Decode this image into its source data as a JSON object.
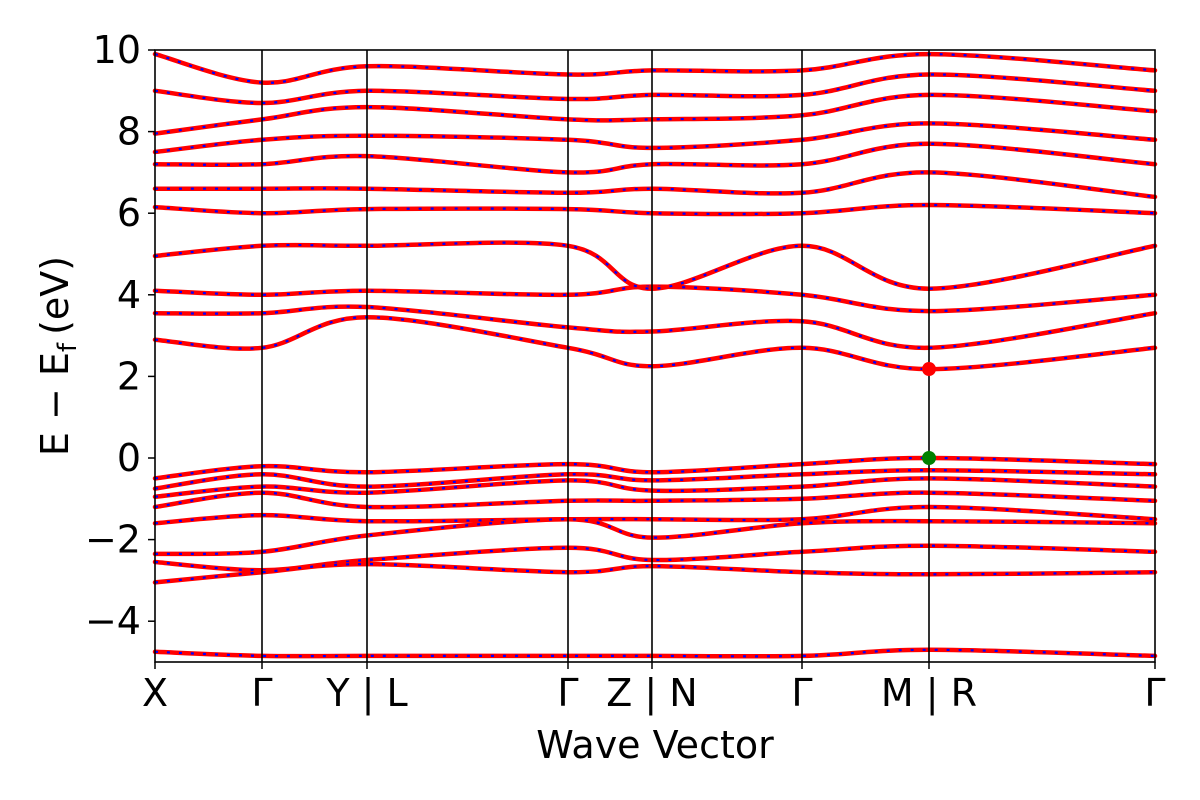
{
  "chart_data": {
    "type": "line",
    "xlabel": "Wave Vector",
    "ylabel": "E − E",
    "ylabel_sub": "f",
    "ylabel_unit": "(eV)",
    "ylim": [
      -5,
      10
    ],
    "yticks": [
      -4,
      -2,
      0,
      2,
      4,
      6,
      8,
      10
    ],
    "ytick_labels": [
      "−4",
      "−2",
      "0",
      "2",
      "4",
      "6",
      "8",
      "10"
    ],
    "kpath": [
      {
        "label": "X",
        "x": 0.0
      },
      {
        "label": "Γ",
        "x": 0.107
      },
      {
        "label": "Y | L",
        "x": 0.212
      },
      {
        "label": "Γ",
        "x": 0.413
      },
      {
        "label": "Z | N",
        "x": 0.497
      },
      {
        "label": "Γ",
        "x": 0.647
      },
      {
        "label": "M | R",
        "x": 0.774
      },
      {
        "label": "Γ",
        "x": 1.0
      }
    ],
    "path_dividers": [
      0.107,
      0.212,
      0.413,
      0.497,
      0.647,
      0.774
    ],
    "series_colors": {
      "line": "#ff0000",
      "overlay": "#0000ff"
    },
    "markers": [
      {
        "name": "CBM",
        "x": 0.774,
        "y": 2.18,
        "color": "#ff0000"
      },
      {
        "name": "VBM",
        "x": 0.774,
        "y": 0.0,
        "color": "#008000"
      }
    ],
    "bands_conduction_sampled": [
      {
        "x": [
          0.0,
          0.107,
          0.212,
          0.413,
          0.497,
          0.647,
          0.774,
          1.0
        ],
        "y": [
          2.9,
          2.7,
          3.45,
          2.7,
          2.25,
          2.7,
          2.18,
          2.7
        ]
      },
      {
        "x": [
          0.0,
          0.107,
          0.212,
          0.413,
          0.497,
          0.647,
          0.774,
          1.0
        ],
        "y": [
          3.55,
          3.55,
          3.7,
          3.2,
          3.1,
          3.35,
          2.7,
          3.55
        ]
      },
      {
        "x": [
          0.0,
          0.107,
          0.212,
          0.413,
          0.497,
          0.647,
          0.774,
          1.0
        ],
        "y": [
          4.1,
          4.0,
          4.1,
          4.0,
          4.2,
          4.0,
          3.6,
          4.0
        ]
      },
      {
        "x": [
          0.0,
          0.107,
          0.212,
          0.413,
          0.497,
          0.647,
          0.774,
          1.0
        ],
        "y": [
          4.95,
          5.2,
          5.2,
          5.2,
          4.15,
          5.2,
          4.15,
          5.2
        ]
      },
      {
        "x": [
          0.0,
          0.107,
          0.212,
          0.413,
          0.497,
          0.647,
          0.774,
          1.0
        ],
        "y": [
          6.15,
          6.0,
          6.1,
          6.1,
          6.0,
          6.0,
          6.2,
          6.0
        ]
      },
      {
        "x": [
          0.0,
          0.107,
          0.212,
          0.413,
          0.497,
          0.647,
          0.774,
          1.0
        ],
        "y": [
          6.6,
          6.6,
          6.6,
          6.5,
          6.6,
          6.5,
          7.0,
          6.4
        ]
      },
      {
        "x": [
          0.0,
          0.107,
          0.212,
          0.413,
          0.497,
          0.647,
          0.774,
          1.0
        ],
        "y": [
          7.2,
          7.2,
          7.4,
          7.0,
          7.2,
          7.2,
          7.7,
          7.2
        ]
      },
      {
        "x": [
          0.0,
          0.107,
          0.212,
          0.413,
          0.497,
          0.647,
          0.774,
          1.0
        ],
        "y": [
          7.5,
          7.8,
          7.9,
          7.8,
          7.6,
          7.8,
          8.2,
          7.8
        ]
      },
      {
        "x": [
          0.0,
          0.107,
          0.212,
          0.413,
          0.497,
          0.647,
          0.774,
          1.0
        ],
        "y": [
          7.95,
          8.3,
          8.6,
          8.3,
          8.3,
          8.4,
          8.9,
          8.5
        ]
      },
      {
        "x": [
          0.0,
          0.107,
          0.212,
          0.413,
          0.497,
          0.647,
          0.774,
          1.0
        ],
        "y": [
          9.0,
          8.7,
          9.0,
          8.8,
          8.9,
          8.9,
          9.4,
          9.0
        ]
      },
      {
        "x": [
          0.0,
          0.107,
          0.212,
          0.413,
          0.497,
          0.647,
          0.774,
          1.0
        ],
        "y": [
          9.9,
          9.2,
          9.6,
          9.4,
          9.5,
          9.5,
          9.9,
          9.5
        ]
      }
    ],
    "bands_valence_sampled": [
      {
        "x": [
          0.0,
          0.107,
          0.212,
          0.413,
          0.497,
          0.647,
          0.774,
          1.0
        ],
        "y": [
          -0.5,
          -0.2,
          -0.35,
          -0.15,
          -0.35,
          -0.15,
          0.0,
          -0.15
        ]
      },
      {
        "x": [
          0.0,
          0.107,
          0.212,
          0.413,
          0.497,
          0.647,
          0.774,
          1.0
        ],
        "y": [
          -0.75,
          -0.4,
          -0.7,
          -0.4,
          -0.55,
          -0.4,
          -0.3,
          -0.4
        ]
      },
      {
        "x": [
          0.0,
          0.107,
          0.212,
          0.413,
          0.497,
          0.647,
          0.774,
          1.0
        ],
        "y": [
          -0.95,
          -0.7,
          -0.85,
          -0.55,
          -0.8,
          -0.7,
          -0.5,
          -0.7
        ]
      },
      {
        "x": [
          0.0,
          0.107,
          0.212,
          0.413,
          0.497,
          0.647,
          0.774,
          1.0
        ],
        "y": [
          -1.2,
          -0.85,
          -1.2,
          -1.05,
          -1.05,
          -1.0,
          -0.85,
          -1.05
        ]
      },
      {
        "x": [
          0.0,
          0.107,
          0.212,
          0.413,
          0.497,
          0.647,
          0.774,
          1.0
        ],
        "y": [
          -1.6,
          -1.4,
          -1.55,
          -1.5,
          -1.5,
          -1.5,
          -1.2,
          -1.5
        ]
      },
      {
        "x": [
          0.0,
          0.107,
          0.212,
          0.413,
          0.497,
          0.647,
          0.774,
          1.0
        ],
        "y": [
          -2.35,
          -2.3,
          -1.9,
          -1.5,
          -1.95,
          -1.6,
          -1.55,
          -1.6
        ]
      },
      {
        "x": [
          0.0,
          0.107,
          0.212,
          0.413,
          0.497,
          0.647,
          0.774,
          1.0
        ],
        "y": [
          -2.55,
          -2.75,
          -2.5,
          -2.2,
          -2.5,
          -2.3,
          -2.15,
          -2.3
        ]
      },
      {
        "x": [
          0.0,
          0.107,
          0.212,
          0.413,
          0.497,
          0.647,
          0.774,
          1.0
        ],
        "y": [
          -3.05,
          -2.8,
          -2.6,
          -2.8,
          -2.65,
          -2.8,
          -2.85,
          -2.8
        ]
      },
      {
        "x": [
          0.0,
          0.107,
          0.212,
          0.413,
          0.497,
          0.647,
          0.774,
          1.0
        ],
        "y": [
          -4.75,
          -4.85,
          -4.85,
          -4.85,
          -4.85,
          -4.85,
          -4.7,
          -4.85
        ]
      }
    ]
  }
}
